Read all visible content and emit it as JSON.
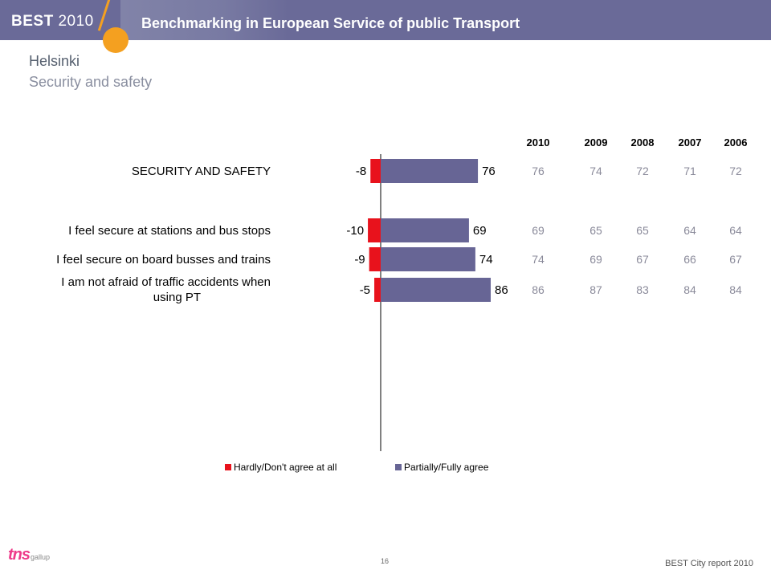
{
  "header": {
    "brand": "BEST",
    "brand_year": "2010",
    "tagline": "Benchmarking in European Service of public Transport"
  },
  "page": {
    "title": "Helsinki",
    "subtitle": "Security and safety"
  },
  "colors": {
    "banner": "#6a6a98",
    "accent_orange": "#f4a020",
    "negative": "#e8121c",
    "positive": "#676595",
    "history_text": "#8a8a9a"
  },
  "chart_data": {
    "type": "bar",
    "orientation": "horizontal-diverging",
    "categories": [
      "SECURITY AND SAFETY",
      "I feel secure at stations and bus stops",
      "I feel secure on board busses and trains",
      "I am not afraid of traffic accidents when using PT"
    ],
    "series": [
      {
        "name": "Hardly/Don't agree at all",
        "values": [
          -8,
          -10,
          -9,
          -5
        ]
      },
      {
        "name": "Partially/Fully agree",
        "values": [
          76,
          69,
          74,
          86
        ]
      }
    ],
    "history": {
      "years": [
        "2010",
        "2009",
        "2008",
        "2007",
        "2006"
      ],
      "rows": [
        [
          "76",
          "74",
          "72",
          "71",
          "72"
        ],
        [
          "69",
          "65",
          "65",
          "64",
          "64"
        ],
        [
          "74",
          "69",
          "67",
          "66",
          "67"
        ],
        [
          "86",
          "87",
          "83",
          "84",
          "84"
        ]
      ]
    },
    "xlim": [
      -15,
      100
    ],
    "legend_position": "bottom"
  },
  "legend": {
    "negative_label": "Hardly/Don't agree at all",
    "positive_label": "Partially/Fully agree"
  },
  "footer": {
    "page_number": "16",
    "report": "BEST City report 2010",
    "logo_main": "tns",
    "logo_sub": "gallup"
  }
}
